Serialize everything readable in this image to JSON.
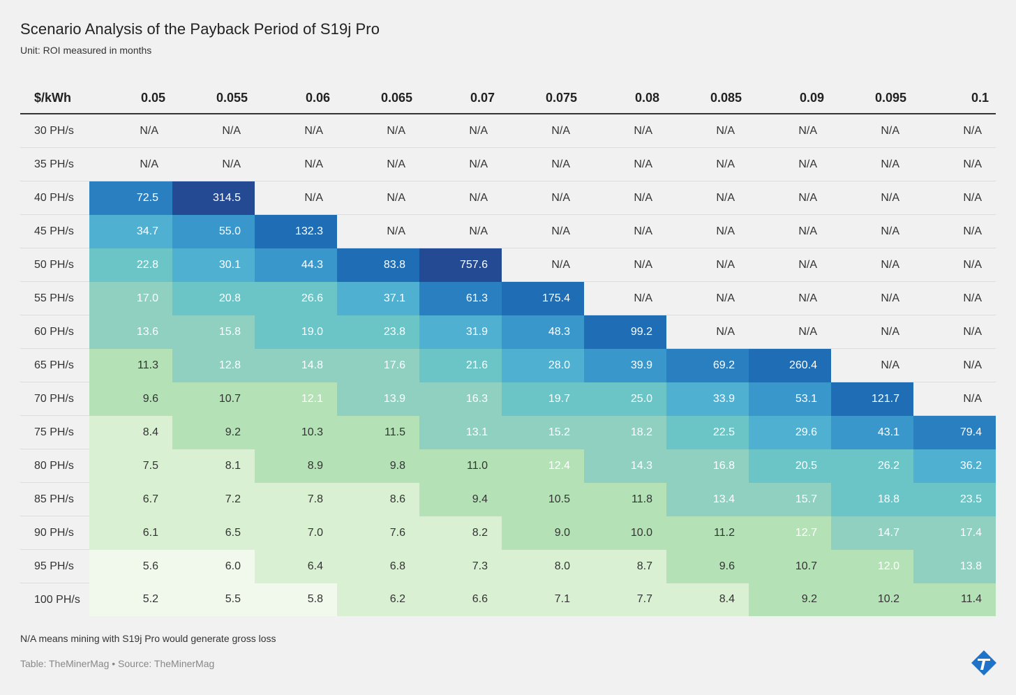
{
  "header": {
    "title": "Scenario Analysis of the Payback Period of S19j Pro",
    "subtitle": "Unit: ROI measured in months"
  },
  "footer": {
    "note": "N/A means mining with S19j Pro would generate gross loss",
    "source": "Table: TheMinerMag • Source: TheMinerMag"
  },
  "chart_data": {
    "type": "heatmap",
    "corner_label": "$/kWh",
    "columns": [
      "0.05",
      "0.055",
      "0.06",
      "0.065",
      "0.07",
      "0.075",
      "0.08",
      "0.085",
      "0.09",
      "0.095",
      "0.1"
    ],
    "rows": [
      "30 PH/s",
      "35 PH/s",
      "40 PH/s",
      "45 PH/s",
      "50 PH/s",
      "55 PH/s",
      "60 PH/s",
      "65 PH/s",
      "70 PH/s",
      "75 PH/s",
      "80 PH/s",
      "85 PH/s",
      "90 PH/s",
      "95 PH/s",
      "100 PH/s"
    ],
    "values": [
      [
        "N/A",
        "N/A",
        "N/A",
        "N/A",
        "N/A",
        "N/A",
        "N/A",
        "N/A",
        "N/A",
        "N/A",
        "N/A"
      ],
      [
        "N/A",
        "N/A",
        "N/A",
        "N/A",
        "N/A",
        "N/A",
        "N/A",
        "N/A",
        "N/A",
        "N/A",
        "N/A"
      ],
      [
        "72.5",
        "314.5",
        "N/A",
        "N/A",
        "N/A",
        "N/A",
        "N/A",
        "N/A",
        "N/A",
        "N/A",
        "N/A"
      ],
      [
        "34.7",
        "55.0",
        "132.3",
        "N/A",
        "N/A",
        "N/A",
        "N/A",
        "N/A",
        "N/A",
        "N/A",
        "N/A"
      ],
      [
        "22.8",
        "30.1",
        "44.3",
        "83.8",
        "757.6",
        "N/A",
        "N/A",
        "N/A",
        "N/A",
        "N/A",
        "N/A"
      ],
      [
        "17.0",
        "20.8",
        "26.6",
        "37.1",
        "61.3",
        "175.4",
        "N/A",
        "N/A",
        "N/A",
        "N/A",
        "N/A"
      ],
      [
        "13.6",
        "15.8",
        "19.0",
        "23.8",
        "31.9",
        "48.3",
        "99.2",
        "N/A",
        "N/A",
        "N/A",
        "N/A"
      ],
      [
        "11.3",
        "12.8",
        "14.8",
        "17.6",
        "21.6",
        "28.0",
        "39.9",
        "69.2",
        "260.4",
        "N/A",
        "N/A"
      ],
      [
        "9.6",
        "10.7",
        "12.1",
        "13.9",
        "16.3",
        "19.7",
        "25.0",
        "33.9",
        "53.1",
        "121.7",
        "N/A"
      ],
      [
        "8.4",
        "9.2",
        "10.3",
        "11.5",
        "13.1",
        "15.2",
        "18.2",
        "22.5",
        "29.6",
        "43.1",
        "79.4"
      ],
      [
        "7.5",
        "8.1",
        "8.9",
        "9.8",
        "11.0",
        "12.4",
        "14.3",
        "16.8",
        "20.5",
        "26.2",
        "36.2"
      ],
      [
        "6.7",
        "7.2",
        "7.8",
        "8.6",
        "9.4",
        "10.5",
        "11.8",
        "13.4",
        "15.7",
        "18.8",
        "23.5"
      ],
      [
        "6.1",
        "6.5",
        "7.0",
        "7.6",
        "8.2",
        "9.0",
        "10.0",
        "11.2",
        "12.7",
        "14.7",
        "17.4"
      ],
      [
        "5.6",
        "6.0",
        "6.4",
        "6.8",
        "7.3",
        "8.0",
        "8.7",
        "9.6",
        "10.7",
        "12.0",
        "13.8"
      ],
      [
        "5.2",
        "5.5",
        "5.8",
        "6.2",
        "6.6",
        "7.1",
        "7.7",
        "8.4",
        "9.2",
        "10.2",
        "11.4"
      ]
    ],
    "color_scale": [
      "#f1f9ec",
      "#d9f0d3",
      "#b5e1b7",
      "#8fd0c0",
      "#6bc4c6",
      "#4fb0d2",
      "#3a97cb",
      "#2a7fc0",
      "#1f6db4",
      "#234a93"
    ],
    "na_color": "#f1f1f1"
  }
}
